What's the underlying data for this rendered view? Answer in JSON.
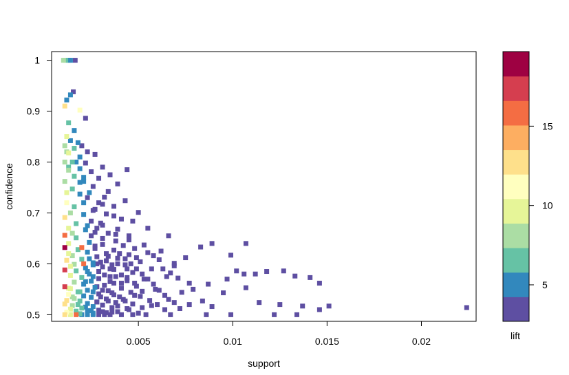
{
  "chart_data": {
    "type": "scatter",
    "title": "",
    "xlabel": "support",
    "ylabel": "confidence",
    "xlim": [
      0.0004,
      0.0229
    ],
    "ylim": [
      0.487,
      1.017
    ],
    "x_ticks": [
      0.005,
      0.01,
      0.015,
      0.02
    ],
    "x_tick_labels": [
      "0.005",
      "0.01",
      "0.015",
      "0.02"
    ],
    "y_ticks": [
      0.5,
      0.6,
      0.7,
      0.8,
      0.9,
      1.0
    ],
    "y_tick_labels": [
      "0.5",
      "0.6",
      "0.7",
      "0.8",
      "0.9",
      "1"
    ],
    "grid": false,
    "legend": {
      "title": "lift",
      "position": "right",
      "range": [
        2.7,
        19.7
      ],
      "tick_values": [
        5,
        10,
        15
      ],
      "tick_labels": [
        "5",
        "10",
        "15"
      ],
      "colors": [
        "#5E4FA2",
        "#3288BD",
        "#66C2A5",
        "#ABDDA4",
        "#E6F598",
        "#FFFFBF",
        "#FEE08B",
        "#FDAE61",
        "#F46D43",
        "#D53E4F",
        "#9E0142"
      ]
    },
    "points": [
      [
        0.00103,
        1.0,
        7.5
      ],
      [
        0.00115,
        1.0,
        7.0
      ],
      [
        0.0013,
        1.0,
        5.0
      ],
      [
        0.0014,
        1.0,
        4.5
      ],
      [
        0.00165,
        1.0,
        4.2
      ],
      [
        0.0022,
        0.886,
        4.0
      ],
      [
        0.0044,
        0.785,
        4.0
      ],
      [
        0.00155,
        0.938,
        4.1
      ],
      [
        0.0014,
        0.932,
        4.3
      ],
      [
        0.0012,
        0.922,
        4.5
      ],
      [
        0.0011,
        0.91,
        12.5
      ],
      [
        0.0019,
        0.902,
        11.5
      ],
      [
        0.0013,
        0.877,
        6.5
      ],
      [
        0.0016,
        0.862,
        5.0
      ],
      [
        0.0012,
        0.85,
        9.0
      ],
      [
        0.0014,
        0.842,
        4.8
      ],
      [
        0.0018,
        0.838,
        4.5
      ],
      [
        0.002,
        0.832,
        4.0
      ],
      [
        0.0011,
        0.832,
        8.5
      ],
      [
        0.0016,
        0.827,
        6.0
      ],
      [
        0.0023,
        0.82,
        3.5
      ],
      [
        0.0013,
        0.818,
        9.0
      ],
      [
        0.0027,
        0.815,
        3.0
      ],
      [
        0.0019,
        0.81,
        5.0
      ],
      [
        0.0015,
        0.8,
        6.5
      ],
      [
        0.0011,
        0.8,
        8.0
      ],
      [
        0.0022,
        0.798,
        4.0
      ],
      [
        0.0031,
        0.79,
        3.0
      ],
      [
        0.0019,
        0.787,
        4.8
      ],
      [
        0.0013,
        0.784,
        7.5
      ],
      [
        0.0025,
        0.781,
        3.5
      ],
      [
        0.0035,
        0.775,
        3.0
      ],
      [
        0.0016,
        0.772,
        6.0
      ],
      [
        0.0029,
        0.768,
        3.5
      ],
      [
        0.0021,
        0.762,
        4.5
      ],
      [
        0.0011,
        0.762,
        8.5
      ],
      [
        0.0039,
        0.757,
        3.0
      ],
      [
        0.0026,
        0.752,
        3.8
      ],
      [
        0.0015,
        0.747,
        7.0
      ],
      [
        0.0034,
        0.742,
        3.2
      ],
      [
        0.0019,
        0.737,
        5.5
      ],
      [
        0.0023,
        0.73,
        4.2
      ],
      [
        0.0043,
        0.724,
        3.0
      ],
      [
        0.0012,
        0.72,
        11.0
      ],
      [
        0.0031,
        0.717,
        3.5
      ],
      [
        0.0016,
        0.712,
        7.0
      ],
      [
        0.0027,
        0.707,
        3.8
      ],
      [
        0.005,
        0.701,
        3.0
      ],
      [
        0.0021,
        0.697,
        5.0
      ],
      [
        0.0037,
        0.694,
        3.2
      ],
      [
        0.0011,
        0.691,
        12.0
      ],
      [
        0.0025,
        0.684,
        4.2
      ],
      [
        0.0047,
        0.684,
        3.0
      ],
      [
        0.0017,
        0.679,
        6.5
      ],
      [
        0.0031,
        0.676,
        3.5
      ],
      [
        0.0013,
        0.67,
        9.5
      ],
      [
        0.0055,
        0.67,
        3.0
      ],
      [
        0.0022,
        0.667,
        5.0
      ],
      [
        0.0027,
        0.662,
        4.0
      ],
      [
        0.0038,
        0.658,
        3.2
      ],
      [
        0.0011,
        0.656,
        16.0
      ],
      [
        0.0066,
        0.655,
        3.0
      ],
      [
        0.0017,
        0.651,
        7.0
      ],
      [
        0.0045,
        0.647,
        3.0
      ],
      [
        0.0024,
        0.642,
        4.5
      ],
      [
        0.0013,
        0.64,
        10.0
      ],
      [
        0.0031,
        0.638,
        3.6
      ],
      [
        0.0089,
        0.64,
        3.0
      ],
      [
        0.0107,
        0.64,
        3.0
      ],
      [
        0.0053,
        0.637,
        3.0
      ],
      [
        0.0011,
        0.632,
        19.0
      ],
      [
        0.002,
        0.632,
        16.5
      ],
      [
        0.0027,
        0.63,
        4.2
      ],
      [
        0.0018,
        0.628,
        6.0
      ],
      [
        0.0037,
        0.627,
        3.3
      ],
      [
        0.0062,
        0.625,
        3.0
      ],
      [
        0.0023,
        0.623,
        4.8
      ],
      [
        0.0033,
        0.62,
        3.5
      ],
      [
        0.0045,
        0.618,
        3.0
      ],
      [
        0.0015,
        0.616,
        8.5
      ],
      [
        0.0028,
        0.614,
        4.2
      ],
      [
        0.0075,
        0.612,
        3.0
      ],
      [
        0.0039,
        0.611,
        3.2
      ],
      [
        0.002,
        0.609,
        5.8
      ],
      [
        0.0012,
        0.607,
        12.0
      ],
      [
        0.0033,
        0.606,
        3.6
      ],
      [
        0.0051,
        0.604,
        3.0
      ],
      [
        0.0026,
        0.602,
        4.5
      ],
      [
        0.0016,
        0.599,
        7.5
      ],
      [
        0.0043,
        0.598,
        3.0
      ],
      [
        0.0069,
        0.596,
        3.0
      ],
      [
        0.0031,
        0.594,
        3.8
      ],
      [
        0.0022,
        0.592,
        5.2
      ],
      [
        0.0057,
        0.59,
        3.0
      ],
      [
        0.0037,
        0.589,
        3.3
      ],
      [
        0.0011,
        0.588,
        17.0
      ],
      [
        0.0017,
        0.586,
        6.5
      ],
      [
        0.0029,
        0.585,
        4.0
      ],
      [
        0.0118,
        0.585,
        3.0
      ],
      [
        0.0047,
        0.583,
        3.0
      ],
      [
        0.0024,
        0.58,
        4.8
      ],
      [
        0.0112,
        0.58,
        3.0
      ],
      [
        0.0041,
        0.578,
        3.1
      ],
      [
        0.0014,
        0.577,
        9.5
      ],
      [
        0.0035,
        0.575,
        3.5
      ],
      [
        0.0065,
        0.575,
        3.0
      ],
      [
        0.002,
        0.573,
        5.8
      ],
      [
        0.0029,
        0.571,
        4.0
      ],
      [
        0.0053,
        0.57,
        3.0
      ],
      [
        0.0044,
        0.567,
        3.0
      ],
      [
        0.0025,
        0.566,
        4.6
      ],
      [
        0.0016,
        0.564,
        7.5
      ],
      [
        0.0037,
        0.562,
        3.3
      ],
      [
        0.0077,
        0.562,
        3.0
      ],
      [
        0.0021,
        0.56,
        5.4
      ],
      [
        0.0032,
        0.558,
        3.7
      ],
      [
        0.0049,
        0.556,
        3.0
      ],
      [
        0.0011,
        0.555,
        18.0
      ],
      [
        0.0027,
        0.554,
        4.3
      ],
      [
        0.0041,
        0.552,
        3.1
      ],
      [
        0.0014,
        0.551,
        10.0
      ],
      [
        0.0059,
        0.55,
        3.0
      ],
      [
        0.0023,
        0.548,
        5.0
      ],
      [
        0.0034,
        0.547,
        3.6
      ],
      [
        0.0018,
        0.545,
        6.5
      ],
      [
        0.0046,
        0.544,
        3.0
      ],
      [
        0.0095,
        0.543,
        3.0
      ],
      [
        0.0029,
        0.541,
        4.0
      ],
      [
        0.0013,
        0.54,
        11.0
      ],
      [
        0.0037,
        0.539,
        3.3
      ],
      [
        0.0021,
        0.537,
        5.5
      ],
      [
        0.0051,
        0.536,
        3.0
      ],
      [
        0.0025,
        0.534,
        4.6
      ],
      [
        0.0016,
        0.532,
        7.5
      ],
      [
        0.0033,
        0.531,
        3.7
      ],
      [
        0.0042,
        0.53,
        3.0
      ],
      [
        0.0066,
        0.53,
        3.0
      ],
      [
        0.0012,
        0.528,
        12.0
      ],
      [
        0.0019,
        0.527,
        6.0
      ],
      [
        0.0028,
        0.525,
        4.1
      ],
      [
        0.0038,
        0.524,
        3.3
      ],
      [
        0.0023,
        0.522,
        5.0
      ],
      [
        0.0011,
        0.521,
        12.5
      ],
      [
        0.0047,
        0.521,
        3.0
      ],
      [
        0.0031,
        0.519,
        3.8
      ],
      [
        0.0015,
        0.518,
        8.0
      ],
      [
        0.0057,
        0.518,
        3.0
      ],
      [
        0.0026,
        0.516,
        4.4
      ],
      [
        0.0036,
        0.514,
        3.4
      ],
      [
        0.002,
        0.513,
        5.8
      ],
      [
        0.0044,
        0.512,
        3.0
      ],
      [
        0.0014,
        0.511,
        9.0
      ],
      [
        0.0029,
        0.509,
        4.0
      ],
      [
        0.0023,
        0.508,
        4.9
      ],
      [
        0.0017,
        0.507,
        6.8
      ],
      [
        0.0039,
        0.506,
        3.2
      ],
      [
        0.0012,
        0.505,
        10.5
      ],
      [
        0.0033,
        0.504,
        3.6
      ],
      [
        0.0026,
        0.503,
        4.4
      ],
      [
        0.005,
        0.503,
        3.0
      ],
      [
        0.0019,
        0.502,
        6.0
      ],
      [
        0.0011,
        0.5,
        12.0
      ],
      [
        0.0014,
        0.5,
        9.5
      ],
      [
        0.0017,
        0.5,
        16.0
      ],
      [
        0.002,
        0.5,
        5.5
      ],
      [
        0.0023,
        0.5,
        4.8
      ],
      [
        0.0026,
        0.5,
        4.3
      ],
      [
        0.0029,
        0.5,
        4.0
      ],
      [
        0.0032,
        0.5,
        3.7
      ],
      [
        0.0035,
        0.5,
        3.5
      ],
      [
        0.0041,
        0.5,
        3.2
      ],
      [
        0.0047,
        0.5,
        3.0
      ],
      [
        0.0054,
        0.5,
        3.0
      ],
      [
        0.0067,
        0.5,
        3.0
      ],
      [
        0.0086,
        0.5,
        3.0
      ],
      [
        0.0099,
        0.5,
        3.0
      ],
      [
        0.0122,
        0.5,
        3.0
      ],
      [
        0.0134,
        0.5,
        3.0
      ],
      [
        0.0083,
        0.633,
        3.0
      ],
      [
        0.0099,
        0.617,
        3.0
      ],
      [
        0.0069,
        0.601,
        3.0
      ],
      [
        0.0106,
        0.58,
        3.0
      ],
      [
        0.0097,
        0.57,
        3.0
      ],
      [
        0.0133,
        0.576,
        3.0
      ],
      [
        0.0141,
        0.573,
        3.0
      ],
      [
        0.0127,
        0.586,
        3.0
      ],
      [
        0.0102,
        0.586,
        3.0
      ],
      [
        0.0146,
        0.562,
        3.0
      ],
      [
        0.0107,
        0.553,
        3.0
      ],
      [
        0.0087,
        0.56,
        3.0
      ],
      [
        0.0079,
        0.55,
        3.0
      ],
      [
        0.0073,
        0.544,
        3.0
      ],
      [
        0.0114,
        0.524,
        3.0
      ],
      [
        0.0125,
        0.52,
        3.0
      ],
      [
        0.0137,
        0.517,
        3.0
      ],
      [
        0.0146,
        0.51,
        3.0
      ],
      [
        0.0151,
        0.517,
        3.0
      ],
      [
        0.0224,
        0.514,
        3.0
      ],
      [
        0.0084,
        0.527,
        3.0
      ],
      [
        0.0077,
        0.52,
        3.0
      ],
      [
        0.0072,
        0.512,
        3.0
      ],
      [
        0.0089,
        0.516,
        3.0
      ],
      [
        0.0069,
        0.524,
        3.0
      ],
      [
        0.0064,
        0.538,
        3.0
      ],
      [
        0.0061,
        0.548,
        3.0
      ],
      [
        0.0058,
        0.56,
        3.0
      ],
      [
        0.0055,
        0.57,
        3.0
      ],
      [
        0.0052,
        0.58,
        3.0
      ],
      [
        0.0049,
        0.59,
        3.0
      ],
      [
        0.0046,
        0.6,
        3.0
      ],
      [
        0.0043,
        0.61,
        3.0
      ],
      [
        0.004,
        0.62,
        3.0
      ],
      [
        0.0061,
        0.608,
        3.0
      ],
      [
        0.0058,
        0.616,
        3.0
      ],
      [
        0.0055,
        0.622,
        3.0
      ],
      [
        0.0063,
        0.59,
        3.0
      ],
      [
        0.0067,
        0.582,
        3.0
      ],
      [
        0.0071,
        0.572,
        3.0
      ],
      [
        0.0049,
        0.612,
        3.0
      ],
      [
        0.0038,
        0.645,
        3.0
      ],
      [
        0.0042,
        0.636,
        3.0
      ],
      [
        0.0034,
        0.66,
        3.0
      ],
      [
        0.003,
        0.68,
        3.0
      ],
      [
        0.0033,
        0.698,
        3.0
      ],
      [
        0.0029,
        0.72,
        3.0
      ],
      [
        0.0032,
        0.731,
        3.0
      ],
      [
        0.0037,
        0.713,
        3.0
      ],
      [
        0.0041,
        0.688,
        3.0
      ],
      [
        0.0039,
        0.668,
        3.0
      ],
      [
        0.0045,
        0.655,
        3.0
      ],
      [
        0.0048,
        0.63,
        3.0
      ],
      [
        0.0044,
        0.59,
        3.0
      ],
      [
        0.0038,
        0.575,
        3.0
      ],
      [
        0.0035,
        0.565,
        3.0
      ],
      [
        0.0031,
        0.548,
        3.0
      ],
      [
        0.0036,
        0.543,
        3.0
      ],
      [
        0.004,
        0.535,
        3.0
      ],
      [
        0.0043,
        0.527,
        3.0
      ],
      [
        0.0039,
        0.517,
        3.0
      ],
      [
        0.0045,
        0.51,
        3.0
      ],
      [
        0.0052,
        0.514,
        3.0
      ],
      [
        0.0056,
        0.528,
        3.0
      ],
      [
        0.006,
        0.52,
        3.0
      ],
      [
        0.0064,
        0.51,
        3.0
      ],
      [
        0.0048,
        0.538,
        3.0
      ],
      [
        0.0052,
        0.546,
        3.0
      ],
      [
        0.0048,
        0.562,
        3.0
      ],
      [
        0.0044,
        0.573,
        3.0
      ],
      [
        0.0041,
        0.562,
        3.0
      ],
      [
        0.0027,
        0.635,
        4.0
      ],
      [
        0.0025,
        0.655,
        4.2
      ],
      [
        0.0023,
        0.675,
        4.5
      ],
      [
        0.0021,
        0.72,
        4.8
      ],
      [
        0.0019,
        0.76,
        5.0
      ],
      [
        0.0017,
        0.8,
        5.5
      ],
      [
        0.0024,
        0.61,
        4.5
      ],
      [
        0.0022,
        0.565,
        5.0
      ],
      [
        0.0019,
        0.545,
        6.0
      ],
      [
        0.0018,
        0.52,
        6.5
      ],
      [
        0.0015,
        0.535,
        8.0
      ],
      [
        0.0013,
        0.552,
        9.5
      ],
      [
        0.0014,
        0.595,
        9.0
      ],
      [
        0.0013,
        0.62,
        10.0
      ],
      [
        0.0015,
        0.66,
        8.0
      ],
      [
        0.0014,
        0.7,
        8.5
      ],
      [
        0.0012,
        0.74,
        10.0
      ],
      [
        0.0013,
        0.79,
        7.0
      ],
      [
        0.0012,
        0.82,
        8.0
      ],
      [
        0.0021,
        0.6,
        15.5
      ],
      [
        0.0023,
        0.585,
        5.0
      ],
      [
        0.0026,
        0.598,
        4.4
      ],
      [
        0.003,
        0.603,
        3.8
      ],
      [
        0.0034,
        0.615,
        3.5
      ],
      [
        0.0026,
        0.575,
        4.4
      ],
      [
        0.0028,
        0.555,
        4.1
      ],
      [
        0.0026,
        0.545,
        4.4
      ],
      [
        0.003,
        0.535,
        3.8
      ],
      [
        0.0028,
        0.525,
        4.1
      ],
      [
        0.0034,
        0.527,
        3.5
      ],
      [
        0.0022,
        0.515,
        5.0
      ],
      [
        0.0025,
        0.508,
        4.6
      ],
      [
        0.0031,
        0.506,
        3.8
      ],
      [
        0.0036,
        0.505,
        3.4
      ],
      [
        0.0035,
        0.59,
        3.5
      ],
      [
        0.0032,
        0.578,
        3.7
      ],
      [
        0.0036,
        0.598,
        3.4
      ],
      [
        0.0039,
        0.6,
        3.2
      ],
      [
        0.0028,
        0.6,
        4.1
      ],
      [
        0.0031,
        0.65,
        3.6
      ],
      [
        0.0028,
        0.67,
        3.9
      ],
      [
        0.0026,
        0.705,
        4.1
      ],
      [
        0.0024,
        0.74,
        4.3
      ],
      [
        0.0021,
        0.77,
        4.7
      ]
    ]
  }
}
